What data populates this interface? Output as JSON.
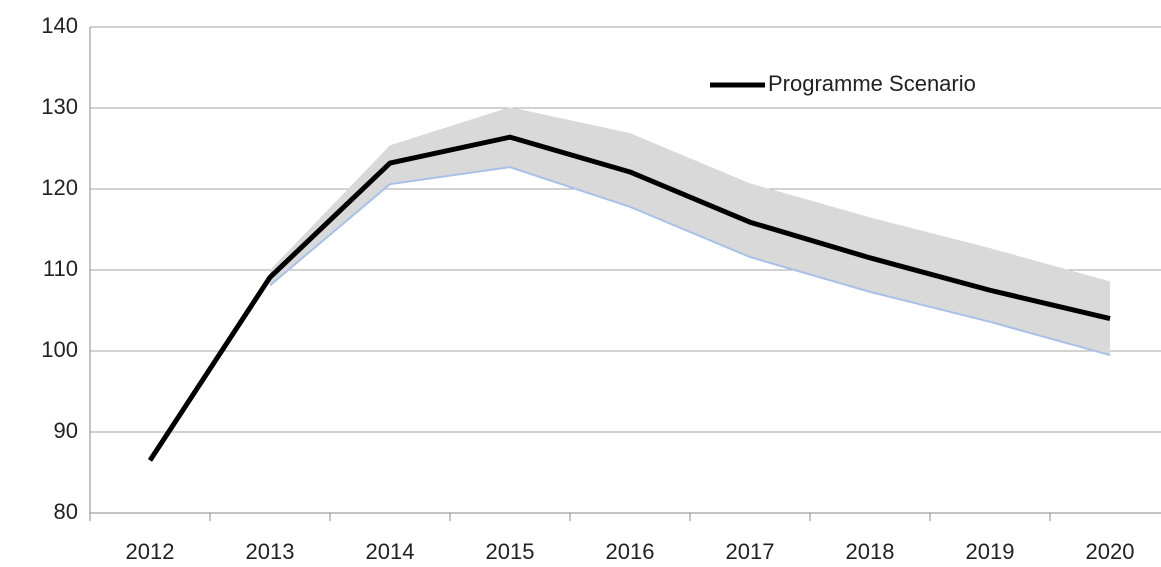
{
  "chart_data": {
    "type": "line",
    "categories": [
      "2012",
      "2013",
      "2014",
      "2015",
      "2016",
      "2017",
      "2018",
      "2019",
      "2020"
    ],
    "series": [
      {
        "name": "Programme Scenario",
        "color": "#000000",
        "values": [
          86.5,
          109.1,
          123.2,
          126.4,
          122.1,
          115.9,
          111.5,
          107.5,
          104.0
        ]
      }
    ],
    "band": {
      "color": "#d9d9d9",
      "edge_color": "#a9c0e8",
      "upper": [
        null,
        110.0,
        125.4,
        130.1,
        126.9,
        120.7,
        116.5,
        112.7,
        108.6
      ],
      "lower": [
        null,
        108.1,
        120.6,
        122.7,
        117.8,
        111.6,
        107.3,
        103.6,
        99.5
      ]
    },
    "ylim": [
      80,
      140
    ],
    "yticks": [
      80,
      90,
      100,
      110,
      120,
      130,
      140
    ],
    "grid": true,
    "legend": "top-right"
  }
}
